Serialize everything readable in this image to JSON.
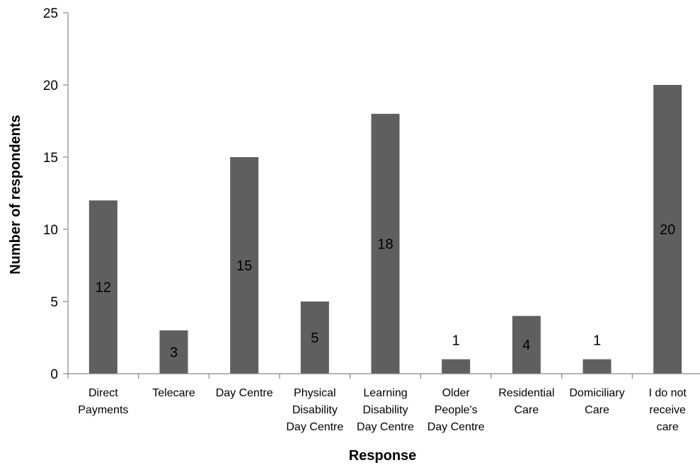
{
  "chart_data": {
    "type": "bar",
    "title": "",
    "xlabel": "Response",
    "ylabel": "Number of respondents",
    "ylim": [
      0,
      25
    ],
    "yticks": [
      0,
      5,
      10,
      15,
      20,
      25
    ],
    "grid": false,
    "legend": "none",
    "bar_color": "#5f5f5f",
    "categories": [
      [
        "Direct",
        "Payments"
      ],
      [
        "Telecare"
      ],
      [
        "Day Centre"
      ],
      [
        "Physical",
        "Disability",
        "Day Centre"
      ],
      [
        "Learning",
        "Disability",
        "Day Centre"
      ],
      [
        "Older",
        "People's",
        "Day Centre"
      ],
      [
        "Residential",
        "Care"
      ],
      [
        "Domiciliary",
        "Care"
      ],
      [
        "I do not",
        "receive",
        "care"
      ]
    ],
    "values": [
      12,
      3,
      15,
      5,
      18,
      1,
      4,
      1,
      20
    ]
  }
}
